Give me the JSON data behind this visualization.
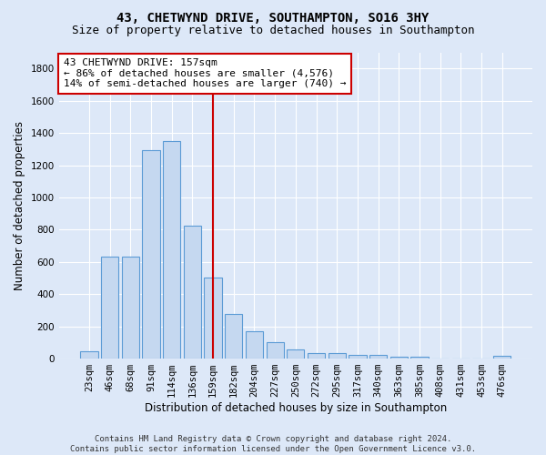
{
  "title": "43, CHETWYND DRIVE, SOUTHAMPTON, SO16 3HY",
  "subtitle": "Size of property relative to detached houses in Southampton",
  "xlabel": "Distribution of detached houses by size in Southampton",
  "ylabel": "Number of detached properties",
  "categories": [
    "23sqm",
    "46sqm",
    "68sqm",
    "91sqm",
    "114sqm",
    "136sqm",
    "159sqm",
    "182sqm",
    "204sqm",
    "227sqm",
    "250sqm",
    "272sqm",
    "295sqm",
    "317sqm",
    "340sqm",
    "363sqm",
    "385sqm",
    "408sqm",
    "431sqm",
    "453sqm",
    "476sqm"
  ],
  "values": [
    45,
    630,
    630,
    1295,
    1350,
    825,
    505,
    275,
    170,
    100,
    55,
    35,
    35,
    22,
    22,
    12,
    12,
    0,
    0,
    0,
    15
  ],
  "bar_color": "#c5d8f0",
  "bar_edgecolor": "#5b9bd5",
  "vline_x": 6,
  "vline_color": "#cc0000",
  "annotation_line1": "43 CHETWYND DRIVE: 157sqm",
  "annotation_line2": "← 86% of detached houses are smaller (4,576)",
  "annotation_line3": "14% of semi-detached houses are larger (740) →",
  "annotation_box_color": "#ffffff",
  "annotation_box_edgecolor": "#cc0000",
  "ylim": [
    0,
    1900
  ],
  "yticks": [
    0,
    200,
    400,
    600,
    800,
    1000,
    1200,
    1400,
    1600,
    1800
  ],
  "footnote": "Contains HM Land Registry data © Crown copyright and database right 2024.\nContains public sector information licensed under the Open Government Licence v3.0.",
  "bg_color": "#dde8f8",
  "plot_bg_color": "#dde8f8",
  "grid_color": "#ffffff",
  "title_fontsize": 10,
  "subtitle_fontsize": 9,
  "axis_label_fontsize": 8.5,
  "tick_fontsize": 7.5,
  "footnote_fontsize": 6.5,
  "annotation_fontsize": 8
}
